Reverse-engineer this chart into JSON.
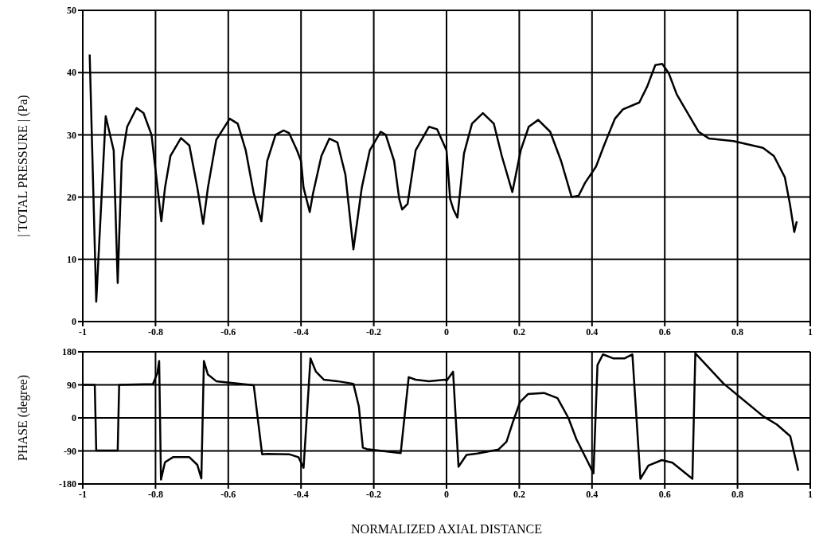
{
  "chart_data": [
    {
      "type": "line",
      "ylabel": "| TOTAL PRESSURE | (Pa)",
      "xlim": [
        -1,
        1
      ],
      "xticks": [
        -1,
        -0.8,
        -0.6,
        -0.4,
        -0.2,
        0,
        0.2,
        0.4,
        0.6,
        0.8,
        1
      ],
      "ylim": [
        0,
        50
      ],
      "yticks": [
        0,
        10,
        20,
        30,
        40,
        50
      ],
      "grid": true,
      "marker": "none",
      "line_style": "solid",
      "x": [
        -0.981,
        -0.963,
        -0.937,
        -0.915,
        -0.904,
        -0.893,
        -0.878,
        -0.852,
        -0.833,
        -0.811,
        -0.784,
        -0.774,
        -0.759,
        -0.73,
        -0.707,
        -0.685,
        -0.669,
        -0.656,
        -0.633,
        -0.596,
        -0.574,
        -0.552,
        -0.53,
        -0.509,
        -0.493,
        -0.47,
        -0.448,
        -0.433,
        -0.411,
        -0.4,
        -0.393,
        -0.376,
        -0.367,
        -0.344,
        -0.322,
        -0.3,
        -0.278,
        -0.256,
        -0.233,
        -0.211,
        -0.181,
        -0.167,
        -0.144,
        -0.13,
        -0.122,
        -0.107,
        -0.085,
        -0.048,
        -0.026,
        0.0,
        0.01,
        0.019,
        0.03,
        0.048,
        0.07,
        0.1,
        0.13,
        0.152,
        0.181,
        0.204,
        0.226,
        0.252,
        0.285,
        0.315,
        0.344,
        0.363,
        0.381,
        0.411,
        0.433,
        0.463,
        0.485,
        0.53,
        0.552,
        0.574,
        0.593,
        0.611,
        0.633,
        0.663,
        0.693,
        0.722,
        0.789,
        0.87,
        0.9,
        0.93,
        0.944,
        0.956,
        0.963
      ],
      "series": [
        {
          "color": "#000000",
          "values": [
            42.9,
            3.2,
            33.0,
            27.5,
            6.2,
            25.8,
            31.3,
            34.3,
            33.5,
            30.0,
            16.1,
            21.5,
            26.6,
            29.5,
            28.3,
            21.5,
            15.7,
            21.5,
            29.2,
            32.6,
            31.8,
            27.5,
            20.6,
            16.1,
            25.8,
            30.0,
            30.7,
            30.3,
            27.5,
            25.8,
            21.5,
            17.6,
            20.6,
            26.6,
            29.4,
            28.8,
            23.6,
            11.6,
            21.5,
            27.5,
            30.5,
            30.0,
            25.8,
            19.7,
            18.0,
            18.9,
            27.5,
            31.3,
            30.9,
            27.5,
            19.7,
            18.0,
            16.7,
            27.0,
            31.8,
            33.5,
            31.8,
            26.6,
            20.8,
            27.5,
            31.3,
            32.4,
            30.5,
            25.8,
            20.0,
            20.2,
            22.3,
            24.9,
            28.3,
            32.6,
            34.1,
            35.2,
            37.8,
            41.2,
            41.4,
            39.9,
            36.5,
            33.5,
            30.5,
            29.4,
            29.0,
            27.9,
            26.6,
            23.2,
            18.9,
            14.4,
            16.1
          ]
        }
      ]
    },
    {
      "type": "line",
      "ylabel": "PHASE (degree)",
      "xlabel": "NORMALIZED AXIAL DISTANCE",
      "xlim": [
        -1,
        1
      ],
      "xticks": [
        -1,
        -0.8,
        -0.6,
        -0.4,
        -0.2,
        0,
        0.2,
        0.4,
        0.6,
        0.8,
        1
      ],
      "ylim": [
        -180,
        180
      ],
      "yticks": [
        -180,
        -90,
        0,
        90,
        180
      ],
      "grid": true,
      "marker": "none",
      "line_style": "solid",
      "x": [
        -1.0,
        -0.967,
        -0.963,
        -0.904,
        -0.9,
        -0.807,
        -0.795,
        -0.79,
        -0.785,
        -0.774,
        -0.752,
        -0.707,
        -0.685,
        -0.674,
        -0.667,
        -0.656,
        -0.633,
        -0.607,
        -0.53,
        -0.507,
        -0.493,
        -0.433,
        -0.407,
        -0.393,
        -0.374,
        -0.359,
        -0.337,
        -0.3,
        -0.256,
        -0.241,
        -0.23,
        -0.219,
        -0.126,
        -0.104,
        -0.085,
        -0.048,
        -0.004,
        0.0,
        0.018,
        0.033,
        0.055,
        0.085,
        0.143,
        0.165,
        0.184,
        0.202,
        0.224,
        0.268,
        0.305,
        0.335,
        0.357,
        0.386,
        0.404,
        0.415,
        0.43,
        0.459,
        0.489,
        0.511,
        0.533,
        0.555,
        0.592,
        0.621,
        0.676,
        0.684,
        0.761,
        0.871,
        0.908,
        0.945,
        0.967
      ],
      "series": [
        {
          "color": "#000000",
          "values": [
            90,
            90,
            -89,
            -89,
            90,
            92,
            122,
            155,
            -168,
            -121,
            -107,
            -107,
            -128,
            -165,
            155,
            118,
            100,
            97,
            89,
            -99,
            -98,
            -99,
            -107,
            -136,
            162,
            126,
            104,
            100,
            93,
            31,
            -81,
            -85,
            -96,
            111,
            104,
            100,
            104,
            101,
            126,
            -133,
            -101,
            -97,
            -86,
            -65,
            -7,
            43,
            65,
            68,
            54,
            0,
            -58,
            -115,
            -151,
            144,
            173,
            162,
            162,
            173,
            -166,
            -130,
            -115,
            -122,
            -166,
            176,
            94,
            4,
            -18,
            -50,
            -144
          ]
        }
      ]
    }
  ]
}
